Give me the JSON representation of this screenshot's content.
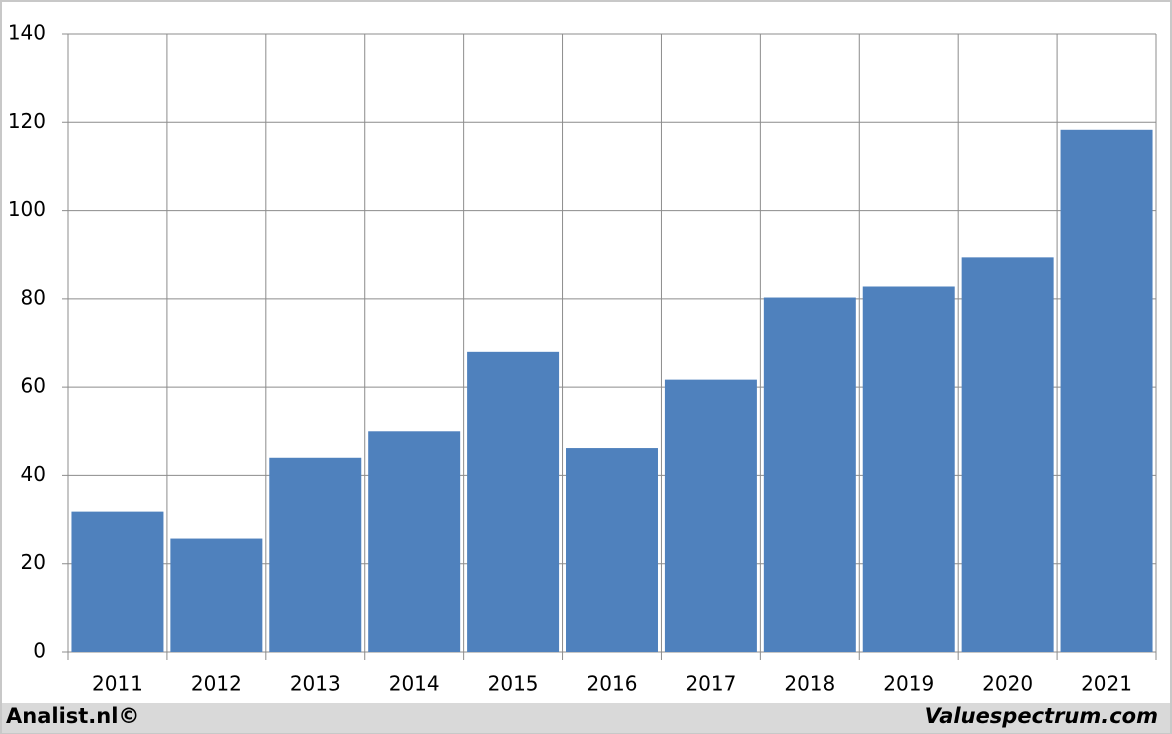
{
  "chart_data": {
    "type": "bar",
    "categories": [
      "2011",
      "2012",
      "2013",
      "2014",
      "2015",
      "2016",
      "2017",
      "2018",
      "2019",
      "2020",
      "2021"
    ],
    "values": [
      31.8,
      25.7,
      44,
      50,
      68,
      46.2,
      61.7,
      80.3,
      82.8,
      89.4,
      118.3
    ],
    "color": "#4f81bd",
    "ylim": [
      0,
      140
    ],
    "yticks": [
      0,
      20,
      40,
      60,
      80,
      100,
      120,
      140
    ],
    "grid": true
  },
  "footer": {
    "left": "Analist.nl©",
    "right": "Valuespectrum.com"
  }
}
